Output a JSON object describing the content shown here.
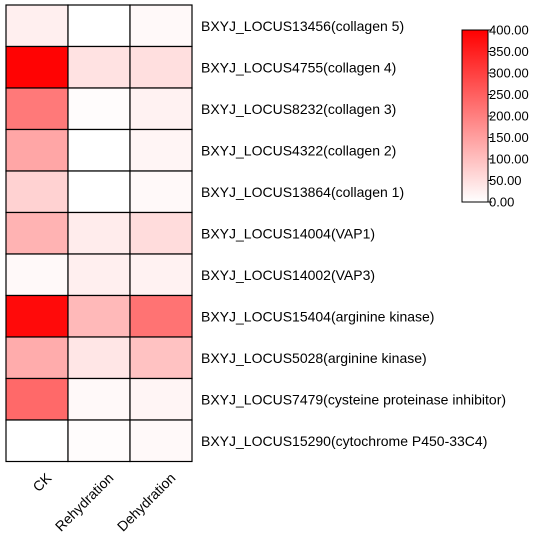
{
  "chart_data": {
    "type": "heatmap",
    "columns": [
      "CK",
      "Rehydration",
      "Dehydration"
    ],
    "rows": [
      "BXYJ_LOCUS13456(collagen 5)",
      "BXYJ_LOCUS4755(collagen 4)",
      "BXYJ_LOCUS8232(collagen 3)",
      "BXYJ_LOCUS4322(collagen 2)",
      "BXYJ_LOCUS13864(collagen 1)",
      "BXYJ_LOCUS14004(VAP1)",
      "BXYJ_LOCUS14002(VAP3)",
      "BXYJ_LOCUS15404(arginine kinase)",
      "BXYJ_LOCUS5028(arginine kinase)",
      "BXYJ_LOCUS7479(cysteine proteinase inhibitor)",
      "BXYJ_LOCUS15290(cytochrome P450-33C4)"
    ],
    "values": [
      [
        25,
        0,
        10
      ],
      [
        395,
        45,
        50
      ],
      [
        210,
        5,
        20
      ],
      [
        140,
        0,
        15
      ],
      [
        70,
        0,
        10
      ],
      [
        120,
        30,
        55
      ],
      [
        10,
        25,
        20
      ],
      [
        385,
        110,
        220
      ],
      [
        130,
        40,
        95
      ],
      [
        235,
        10,
        15
      ],
      [
        0,
        5,
        10
      ]
    ],
    "colorbar": {
      "min": 0,
      "max": 400,
      "ticks": [
        "0.00",
        "50.00",
        "100.00",
        "150.00",
        "200.00",
        "250.00",
        "300.00",
        "350.00",
        "400.00"
      ],
      "color_low": "#ffffff",
      "color_high": "#ff0000"
    }
  }
}
